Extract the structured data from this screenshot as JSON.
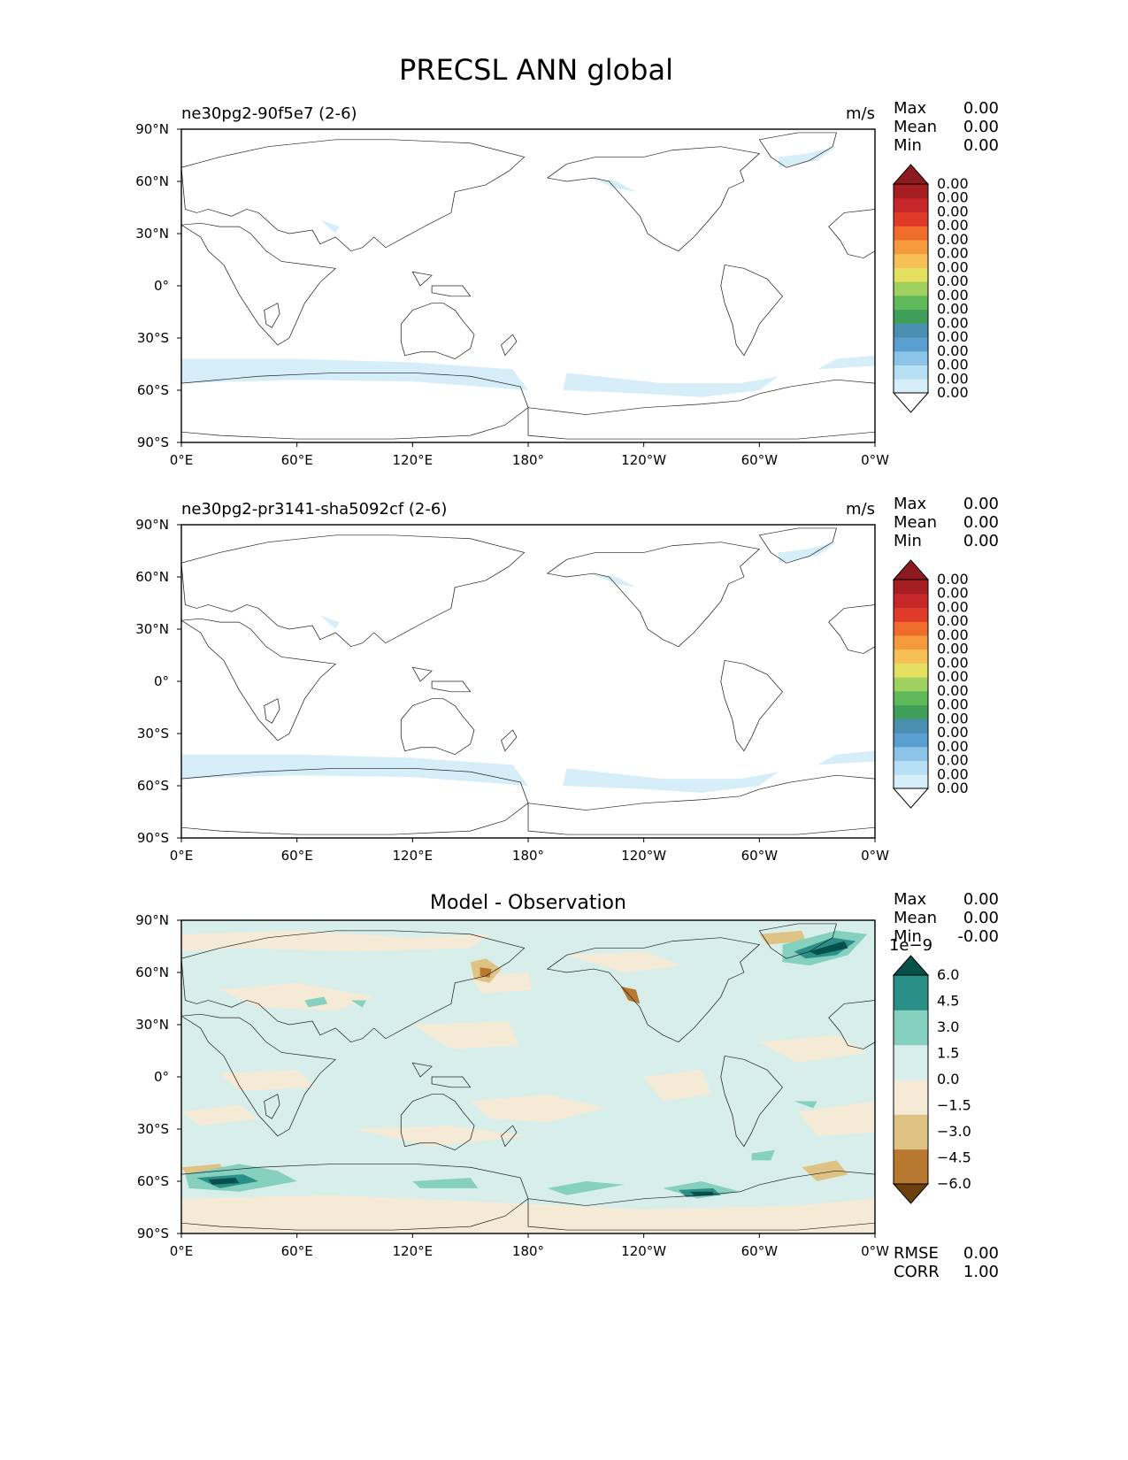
{
  "figure": {
    "title": "PRECSL ANN global",
    "colors": {
      "land_outline": "#222222",
      "frame": "#000000",
      "field_blue": "#d6eef8",
      "diff_zero_pos": "#d8eeea",
      "diff_zero_neg": "#f5ead6"
    }
  },
  "x_ticks": [
    "0°E",
    "60°E",
    "120°E",
    "180°",
    "120°W",
    "60°W",
    "0°W"
  ],
  "y_ticks": [
    "90°N",
    "60°N",
    "30°N",
    "0°",
    "30°S",
    "60°S",
    "90°S"
  ],
  "panels": [
    {
      "label": "ne30pg2-90f5e7 (2-6)",
      "units": "m/s",
      "title": "",
      "stats": [
        {
          "name": "Max",
          "value": "0.00"
        },
        {
          "name": "Mean",
          "value": "0.00"
        },
        {
          "name": "Min",
          "value": "0.00"
        }
      ],
      "colorbar": {
        "colors": [
          "#ffffff",
          "#d6eef8",
          "#b7dff3",
          "#8bc4e6",
          "#5a9fd1",
          "#4a8fb0",
          "#3f9f5a",
          "#5fb85a",
          "#9fd060",
          "#e6e060",
          "#f7c056",
          "#f59a3c",
          "#ef6c2c",
          "#df3a2a",
          "#c8272a",
          "#a51e22",
          "#8c1a1e"
        ],
        "tick_labels": [
          "0.00",
          "0.00",
          "0.00",
          "0.00",
          "0.00",
          "0.00",
          "0.00",
          "0.00",
          "0.00",
          "0.00",
          "0.00",
          "0.00",
          "0.00",
          "0.00",
          "0.00",
          "0.00"
        ],
        "extend": "both"
      }
    },
    {
      "label": "ne30pg2-pr3141-sha5092cf (2-6)",
      "units": "m/s",
      "title": "",
      "stats": [
        {
          "name": "Max",
          "value": "0.00"
        },
        {
          "name": "Mean",
          "value": "0.00"
        },
        {
          "name": "Min",
          "value": "0.00"
        }
      ],
      "colorbar": {
        "colors": [
          "#ffffff",
          "#d6eef8",
          "#b7dff3",
          "#8bc4e6",
          "#5a9fd1",
          "#4a8fb0",
          "#3f9f5a",
          "#5fb85a",
          "#9fd060",
          "#e6e060",
          "#f7c056",
          "#f59a3c",
          "#ef6c2c",
          "#df3a2a",
          "#c8272a",
          "#a51e22",
          "#8c1a1e"
        ],
        "tick_labels": [
          "0.00",
          "0.00",
          "0.00",
          "0.00",
          "0.00",
          "0.00",
          "0.00",
          "0.00",
          "0.00",
          "0.00",
          "0.00",
          "0.00",
          "0.00",
          "0.00",
          "0.00",
          "0.00"
        ],
        "extend": "both"
      }
    },
    {
      "label": "",
      "units": "",
      "title": "Model - Observation",
      "stats": [
        {
          "name": "Max",
          "value": "0.00"
        },
        {
          "name": "Mean",
          "value": "0.00"
        },
        {
          "name": "Min",
          "value": "-0.00"
        }
      ],
      "bottom_stats": [
        {
          "name": "RMSE",
          "value": "0.00"
        },
        {
          "name": "CORR",
          "value": "1.00"
        }
      ],
      "colorbar": {
        "colors": [
          "#6a3f0b",
          "#b87830",
          "#dfc384",
          "#f5ead6",
          "#d8eeea",
          "#86d0c0",
          "#2a8f86",
          "#05504a"
        ],
        "tick_labels": [
          "−6.0",
          "−4.5",
          "−3.0",
          "−1.5",
          "0.0",
          "1.5",
          "3.0",
          "4.5",
          "6.0"
        ],
        "offset_label": "1e−9",
        "extend": "both"
      }
    }
  ]
}
